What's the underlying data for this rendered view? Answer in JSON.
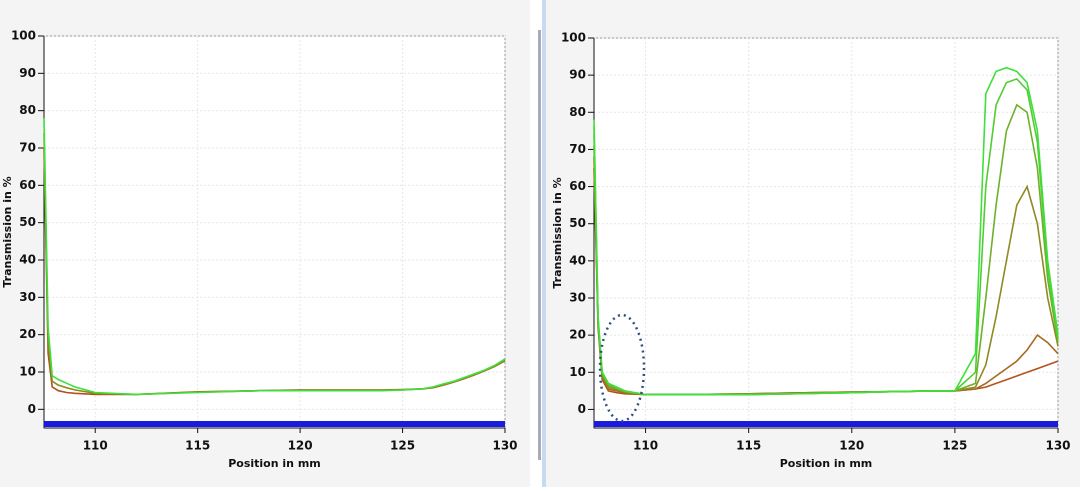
{
  "chart_data": [
    {
      "type": "line",
      "xlabel": "Position in mm",
      "ylabel": "Transmission in %",
      "xlim": [
        107.5,
        130
      ],
      "ylim": [
        -5,
        100
      ],
      "xticks": [
        110,
        115,
        120,
        125,
        130
      ],
      "yticks": [
        0,
        10,
        20,
        30,
        40,
        50,
        60,
        70,
        80,
        90,
        100
      ],
      "grid": true,
      "x": [
        107.5,
        107.7,
        107.9,
        108.2,
        108.6,
        109,
        110,
        112,
        115,
        118,
        120,
        122,
        124,
        125,
        126,
        126.5,
        127,
        127.5,
        128,
        128.5,
        129,
        129.5,
        130
      ],
      "series": [
        {
          "color": "#b5501a",
          "values": [
            70,
            15,
            6,
            5,
            4.5,
            4.3,
            4,
            4,
            4.7,
            5,
            5.2,
            5.2,
            5.2,
            5.3,
            5.5,
            5.8,
            6.5,
            7.3,
            8.2,
            9.2,
            10.3,
            11.5,
            13
          ]
        },
        {
          "color": "#8a8a20",
          "values": [
            74,
            18,
            7.5,
            6.5,
            5.8,
            5.2,
            4.3,
            4,
            4.6,
            5,
            5.1,
            5.1,
            5.1,
            5.2,
            5.5,
            5.9,
            6.6,
            7.4,
            8.3,
            9.3,
            10.4,
            11.6,
            13.2
          ]
        },
        {
          "color": "#3ee03a",
          "values": [
            78,
            22,
            9,
            8,
            7,
            6,
            4.5,
            4,
            4.5,
            5,
            5,
            5,
            5,
            5.2,
            5.5,
            6,
            6.8,
            7.5,
            8.5,
            9.5,
            10.5,
            11.8,
            13.5
          ]
        }
      ]
    },
    {
      "type": "line",
      "xlabel": "Position in mm",
      "ylabel": "Transmission in %",
      "xlim": [
        107.5,
        130
      ],
      "ylim": [
        -5,
        100
      ],
      "xticks": [
        110,
        115,
        120,
        125,
        130
      ],
      "yticks": [
        0,
        10,
        20,
        30,
        40,
        50,
        60,
        70,
        80,
        90,
        100
      ],
      "grid": true,
      "x": [
        107.5,
        107.7,
        107.9,
        108.2,
        108.6,
        109,
        110,
        112,
        115,
        118,
        120,
        122,
        124,
        125,
        126,
        126.5,
        127,
        127.5,
        128,
        128.5,
        129,
        129.5,
        130
      ],
      "series": [
        {
          "color": "#b5501a",
          "values": [
            65,
            22,
            8,
            5,
            4.5,
            4.2,
            4,
            4,
            4.2,
            4.5,
            4.7,
            4.8,
            5,
            5,
            5.5,
            6,
            7,
            8,
            9,
            10,
            11,
            12,
            13
          ]
        },
        {
          "color": "#a66a1e",
          "values": [
            68,
            23,
            8.5,
            5.5,
            5,
            4.5,
            4,
            4,
            4.2,
            4.5,
            4.7,
            4.8,
            5,
            5,
            5.5,
            7,
            9,
            11,
            13,
            16,
            20,
            18,
            15
          ]
        },
        {
          "color": "#8f8a22",
          "values": [
            71,
            23,
            9,
            6,
            5.3,
            4.7,
            4,
            4,
            4.1,
            4.4,
            4.6,
            4.8,
            5,
            5,
            6,
            12,
            25,
            40,
            55,
            60,
            50,
            30,
            17
          ]
        },
        {
          "color": "#6fb02a",
          "values": [
            74,
            24,
            9.5,
            6.5,
            5.6,
            4.8,
            4,
            4,
            4,
            4.3,
            4.5,
            4.8,
            5,
            5,
            7,
            30,
            55,
            75,
            82,
            80,
            65,
            35,
            18
          ]
        },
        {
          "color": "#52cc32",
          "values": [
            76,
            24,
            10,
            7,
            5.8,
            5,
            4,
            4,
            4,
            4.3,
            4.5,
            4.8,
            5,
            5,
            10,
            60,
            82,
            88,
            89,
            86,
            72,
            38,
            19
          ]
        },
        {
          "color": "#3ee03a",
          "values": [
            78,
            25,
            10,
            7,
            6,
            5,
            4,
            4,
            4,
            4.3,
            4.5,
            4.8,
            5,
            5,
            15,
            85,
            91,
            92,
            91,
            88,
            75,
            40,
            20
          ]
        }
      ]
    }
  ]
}
